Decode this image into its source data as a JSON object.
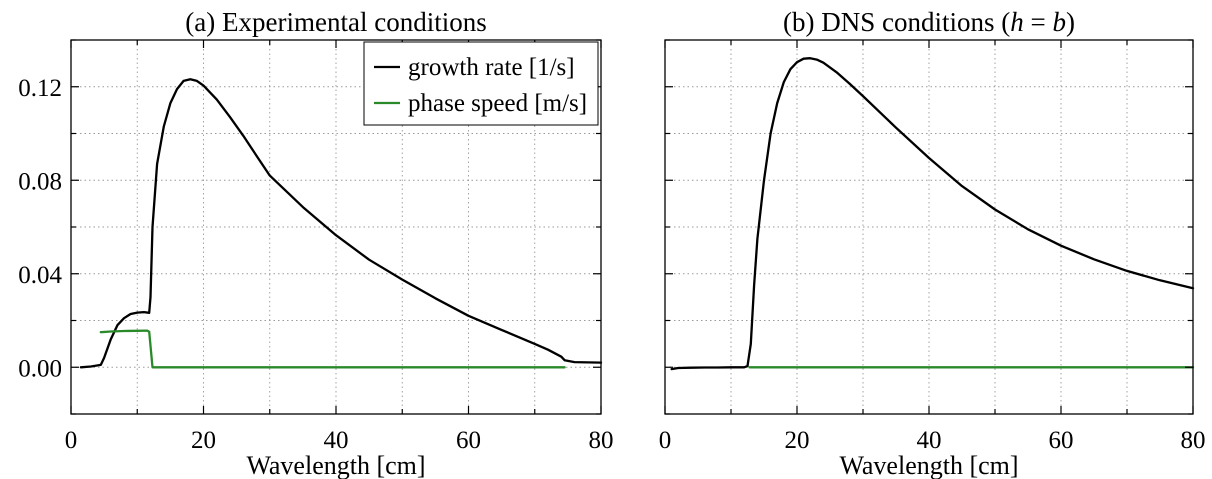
{
  "chart_data": [
    {
      "type": "line",
      "title": "(a) Experimental conditions",
      "xlabel": "Wavelength [cm]",
      "ylabel": "",
      "xlim": [
        0,
        80
      ],
      "ylim": [
        -0.02,
        0.14
      ],
      "xticks": [
        "0",
        "20",
        "40",
        "60",
        "80"
      ],
      "yticks": [
        "0.00",
        "0.04",
        "0.08",
        "0.12"
      ],
      "grid": true,
      "legend_position": "top-right",
      "series": [
        {
          "name": "growth rate [1/s]",
          "color": "#000000",
          "x": [
            1.5,
            3,
            4.5,
            5,
            6,
            7,
            8,
            9,
            10,
            11,
            11.8,
            12,
            12.3,
            13,
            14,
            15,
            16,
            17,
            18,
            19,
            20,
            22,
            24,
            26,
            28,
            30,
            35,
            40,
            45,
            50,
            55,
            60,
            65,
            70,
            72,
            74,
            74.5,
            76,
            80
          ],
          "y": [
            0.0,
            0.0003,
            0.001,
            0.004,
            0.012,
            0.018,
            0.021,
            0.0228,
            0.0234,
            0.0236,
            0.0233,
            0.03,
            0.06,
            0.087,
            0.103,
            0.113,
            0.119,
            0.1225,
            0.1232,
            0.1225,
            0.1205,
            0.1145,
            0.107,
            0.099,
            0.0905,
            0.082,
            0.0685,
            0.0565,
            0.046,
            0.0375,
            0.0295,
            0.022,
            0.016,
            0.01,
            0.0075,
            0.0045,
            0.003,
            0.0022,
            0.002
          ]
        },
        {
          "name": "phase speed [m/s]",
          "color": "#2a8a2a",
          "x": [
            4.5,
            6,
            8,
            10,
            11.5,
            11.8,
            12.3,
            20,
            40,
            60,
            74.5
          ],
          "y": [
            0.015,
            0.0153,
            0.0155,
            0.0156,
            0.0157,
            0.0152,
            0.0,
            0.0,
            0.0,
            0.0,
            0.0
          ]
        }
      ]
    },
    {
      "type": "line",
      "title": "(b) DNS conditions (h = b)",
      "title_parts": {
        "pre": "(b) DNS conditions (",
        "h": "h",
        "mid": " = ",
        "b": "b",
        "post": ")"
      },
      "xlabel": "Wavelength [cm]",
      "ylabel": "",
      "xlim": [
        0,
        80
      ],
      "ylim": [
        -0.02,
        0.14
      ],
      "xticks": [
        "0",
        "20",
        "40",
        "60",
        "80"
      ],
      "yticks": [
        "0.00",
        "0.04",
        "0.08",
        "0.12"
      ],
      "grid": true,
      "series": [
        {
          "name": "growth rate [1/s]",
          "color": "#000000",
          "x": [
            1,
            2,
            4,
            6,
            8,
            10,
            12,
            12.5,
            13,
            13.5,
            14,
            15,
            16,
            17,
            18,
            19,
            20,
            21,
            22,
            23,
            24,
            26,
            28,
            30,
            35,
            40,
            45,
            50,
            55,
            60,
            65,
            70,
            75,
            80
          ],
          "y": [
            -0.0008,
            -0.0003,
            -0.0002,
            -0.0001,
            -0.0001,
            0.0,
            0.0,
            0.0005,
            0.01,
            0.035,
            0.055,
            0.08,
            0.1,
            0.113,
            0.122,
            0.1275,
            0.1305,
            0.132,
            0.1322,
            0.1316,
            0.1303,
            0.1262,
            0.1212,
            0.116,
            0.1025,
            0.0895,
            0.0775,
            0.0675,
            0.059,
            0.052,
            0.0462,
            0.0412,
            0.0372,
            0.0338
          ]
        },
        {
          "name": "phase speed [m/s]",
          "color": "#2a8a2a",
          "x": [
            12.8,
            20,
            40,
            60,
            80
          ],
          "y": [
            0.0,
            0.0,
            0.0,
            0.0,
            0.0
          ]
        }
      ]
    }
  ]
}
